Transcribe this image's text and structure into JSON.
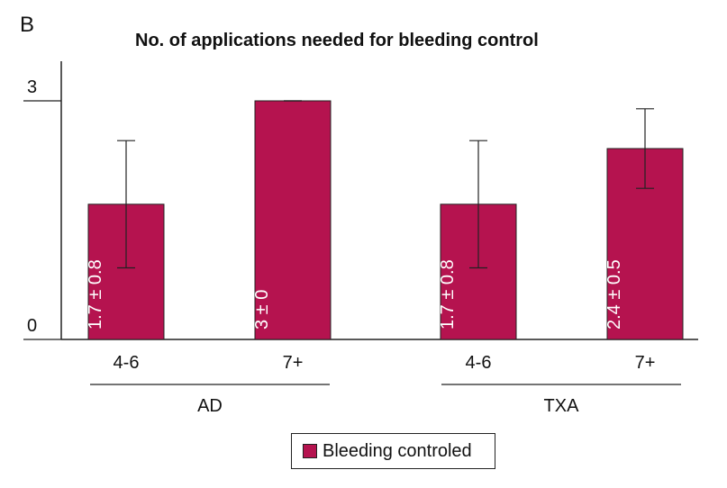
{
  "panel_label": "B",
  "chart_data": {
    "type": "bar",
    "title": "No. of applications needed for bleeding control",
    "ylim": [
      0,
      3
    ],
    "yticks": [
      "0",
      "3"
    ],
    "categories": [
      "4-6",
      "7+",
      "4-6",
      "7+"
    ],
    "groups": [
      {
        "name": "AD",
        "categories": [
          "4-6",
          "7+"
        ]
      },
      {
        "name": "TXA",
        "categories": [
          "4-6",
          "7+"
        ]
      }
    ],
    "series": [
      {
        "name": "Bleeding controled",
        "color": "#b5134f",
        "values": [
          1.7,
          3.0,
          1.7,
          2.4
        ],
        "errors": [
          0.8,
          0.0,
          0.8,
          0.5
        ],
        "labels": [
          "1.7 ± 0.8",
          "3 ± 0",
          "1.7 ± 0.8",
          "2.4 ± 0.5"
        ]
      }
    ],
    "grid": false,
    "legend": "bottom-center"
  }
}
